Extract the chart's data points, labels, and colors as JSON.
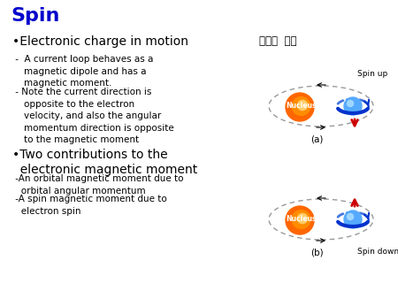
{
  "title": "Spin",
  "title_color": "#0000CC",
  "title_fontsize": 16,
  "bg_color": "#FFFFFF",
  "bullet1": "•Electronic charge in motion",
  "sub1a": " -  A current loop behaves as a\n    magnetic dipole and has a\n    magnetic moment.",
  "sub1b": " - Note the current direction is\n    opposite to the electron\n    velocity, and also the angular\n    momentum direction is opposite\n    to the magnetic moment",
  "bullet2": "•Two contributions to the\n  electronic magnetic moment",
  "sub2a": " -An orbital magnetic moment due to\n   orbital angular momentum",
  "sub2b": " -A spin magnetic moment due to\n   electron spin",
  "korean_label": "전자의  스핀",
  "label_a": "(a)",
  "label_b": "(b)",
  "spin_up": "Spin up",
  "spin_down": "Spin down",
  "nucleus_label": "Nucleus",
  "nucleus_color": "#FF6600",
  "nucleus_color2": "#FF8C00",
  "electron_color": "#55AAFF",
  "electron_color2": "#AADDFF",
  "arrow_color": "#0033CC",
  "spin_arrow_color": "#CC0000",
  "ellipse_color": "#999999",
  "text_color": "#000000",
  "body_fontsize": 7.5,
  "bullet_fontsize": 10,
  "figw": 4.5,
  "figh": 3.38,
  "dpi": 100
}
